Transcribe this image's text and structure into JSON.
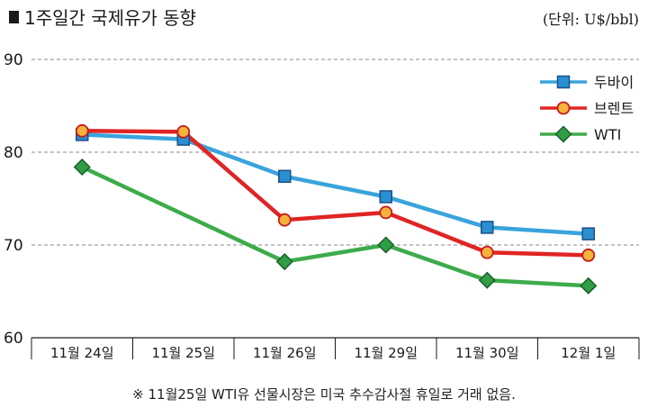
{
  "header": {
    "title": "1주일간 국제유가 동향",
    "unit": "(단위: U$/bbl)"
  },
  "footnote": "※ 11월25일 WTI유 선물시장은 미국 추수감사절 휴일로 거래 없음.",
  "colors": {
    "dubai": "#3aa3dc",
    "brent": "#e02424",
    "wti": "#3dab4b",
    "dubai_marker": "#2a8fd0",
    "brent_marker": "#f5b33c",
    "wti_marker": "#2f9e45"
  },
  "chart_data": {
    "type": "line",
    "title": "1주일간 국제유가 동향",
    "xlabel": "",
    "ylabel": "",
    "unit": "U$/bbl",
    "ylim": [
      60,
      90
    ],
    "yticks": [
      "60",
      "70",
      "80",
      "90"
    ],
    "categories": [
      "11월 24일",
      "11월 25일",
      "11월 26일",
      "11월 29일",
      "11월 30일",
      "12월 1일"
    ],
    "legend_position": "top-right",
    "grid": "dashed horizontal at 70, 80, 90",
    "series": [
      {
        "name": "두바이",
        "key": "dubai",
        "marker": "square",
        "values": [
          81.9,
          81.4,
          77.4,
          75.2,
          71.9,
          71.2
        ]
      },
      {
        "name": "브렌트",
        "key": "brent",
        "marker": "circle",
        "values": [
          82.3,
          82.2,
          72.7,
          73.5,
          69.2,
          68.9
        ]
      },
      {
        "name": "WTI",
        "key": "wti",
        "marker": "diamond",
        "values": [
          78.4,
          null,
          68.2,
          70.0,
          66.2,
          65.6
        ]
      }
    ]
  }
}
